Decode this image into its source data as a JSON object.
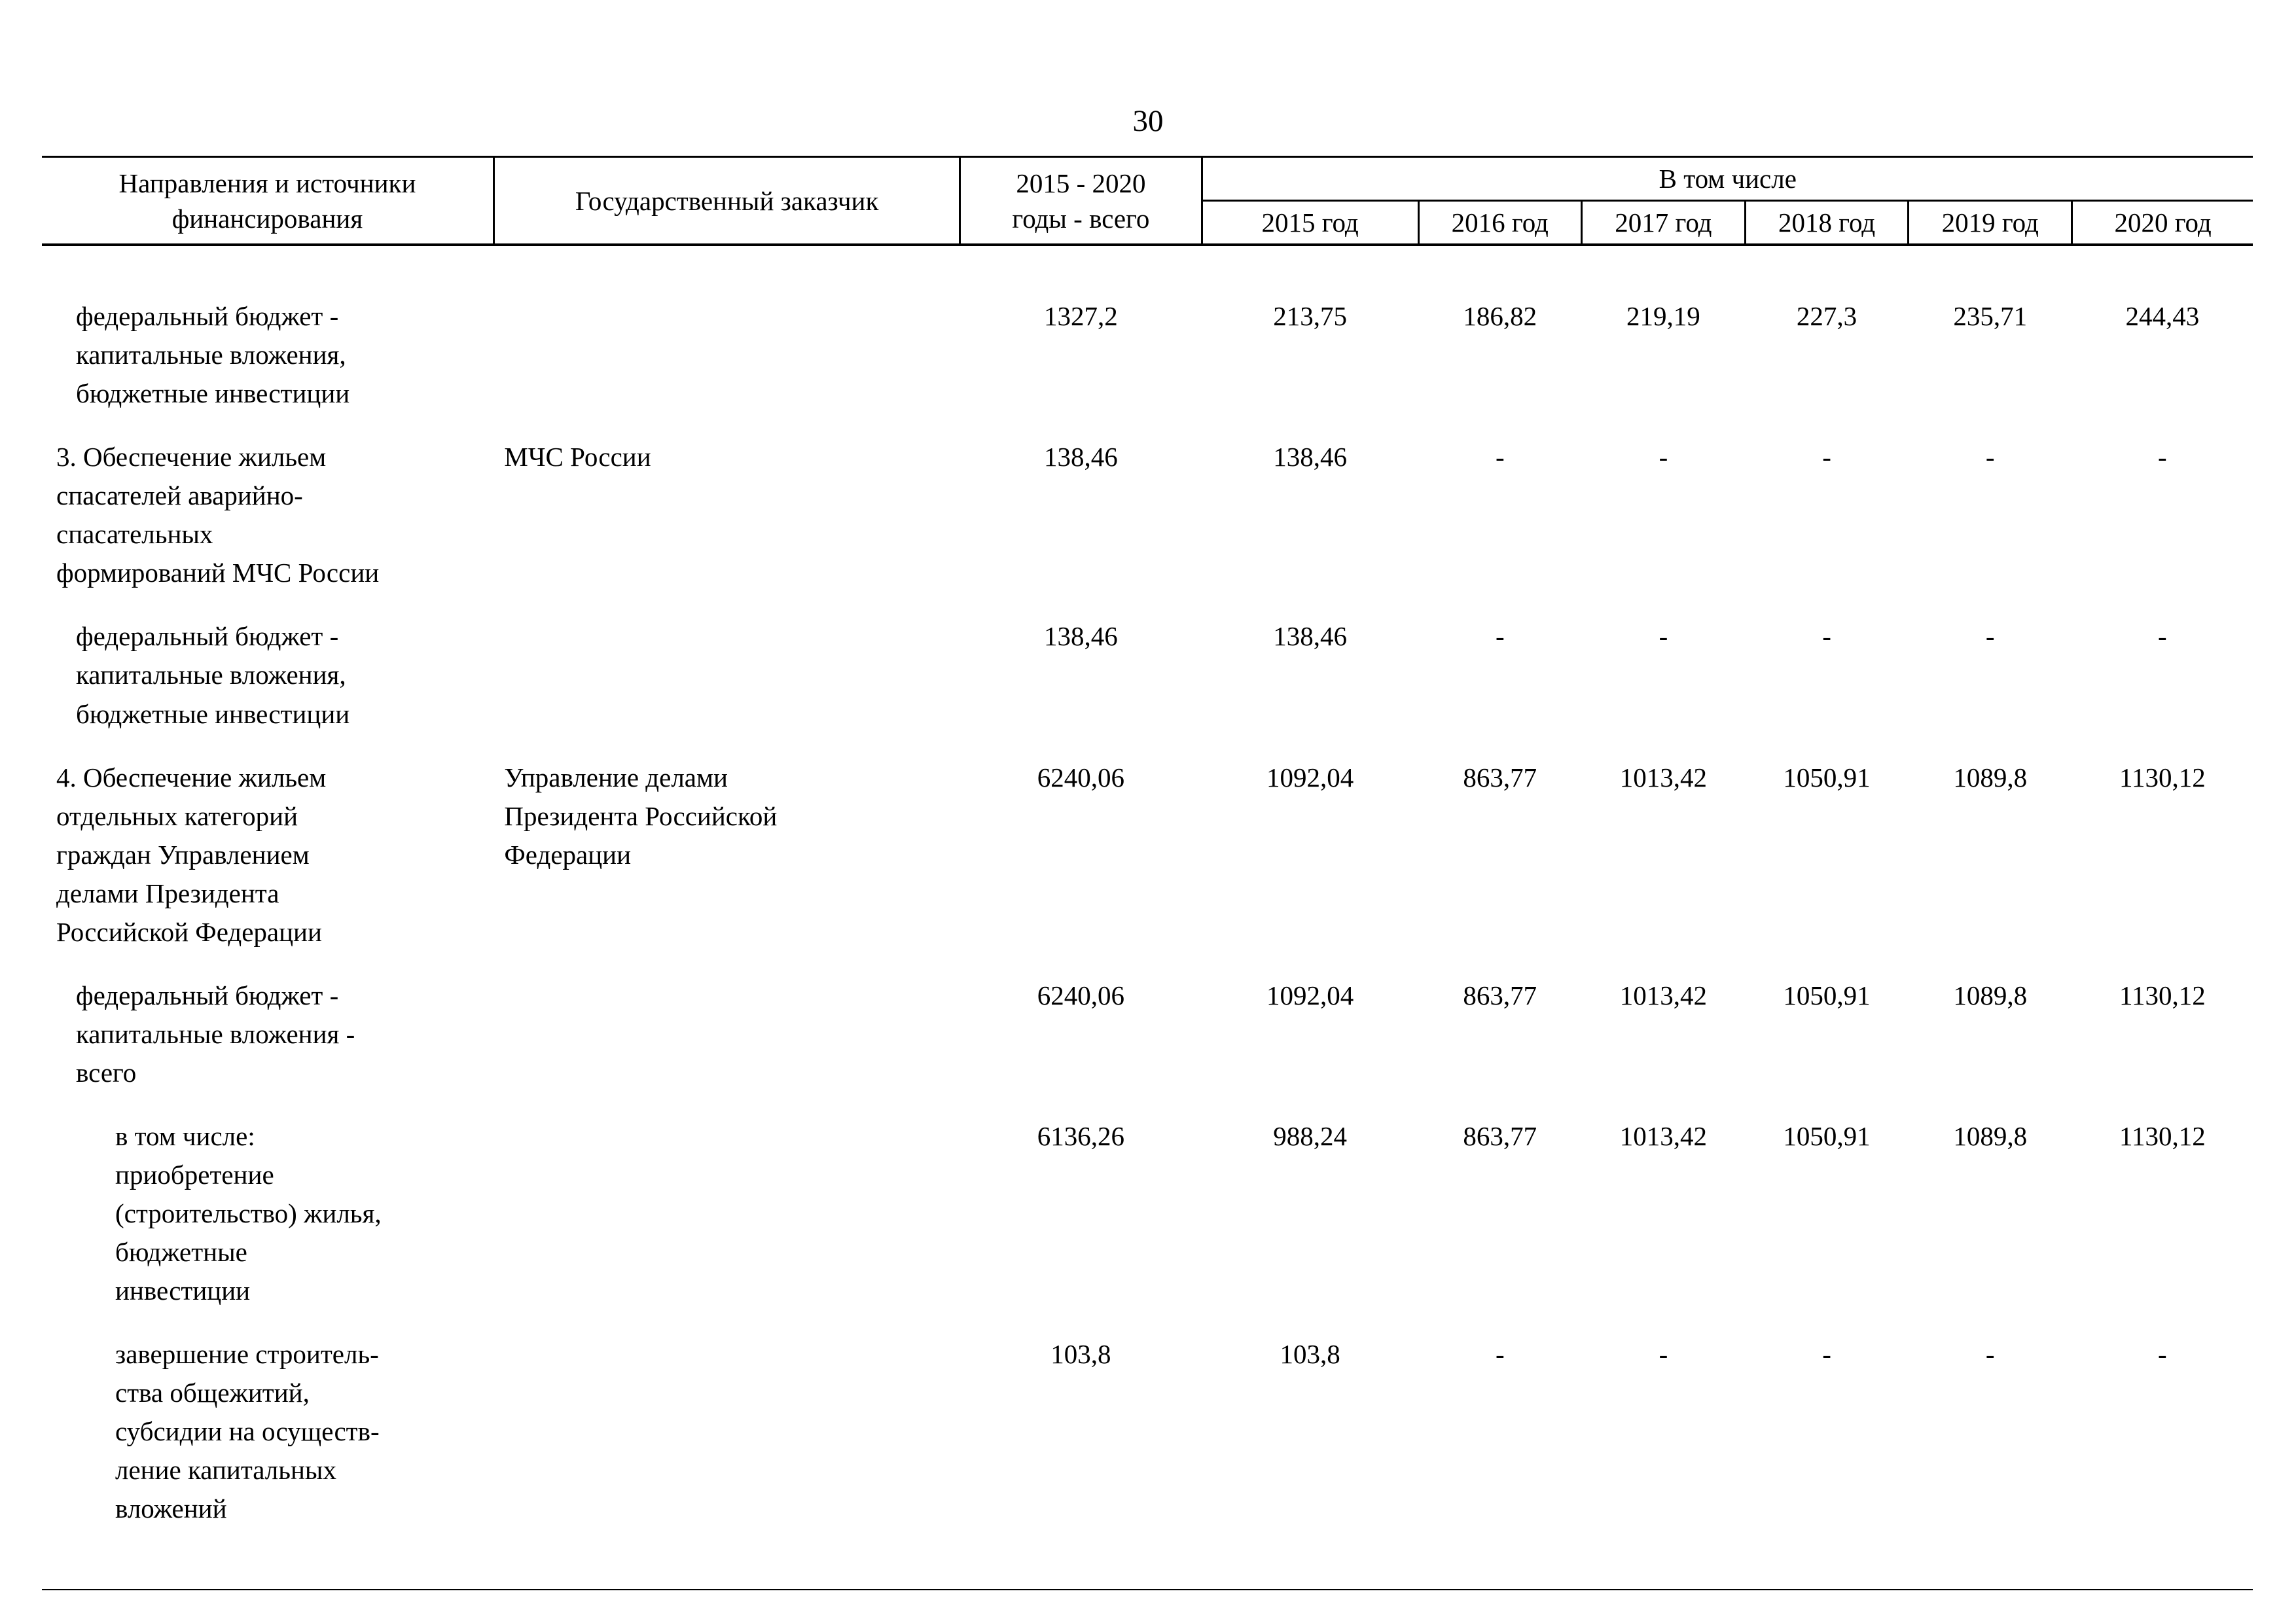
{
  "page": {
    "number": "30"
  },
  "table": {
    "header": {
      "col_directions": "Направления и источники\nфинансирования",
      "col_customer": "Государственный заказчик",
      "col_total": "2015 - 2020\nгоды - всего",
      "col_including": "В том числе",
      "years": [
        "2015 год",
        "2016 год",
        "2017 год",
        "2018 год",
        "2019 год",
        "2020 год"
      ]
    },
    "rows": [
      {
        "indent": 1,
        "direction": "федеральный бюджет -\nкапитальные вложения,\nбюджетные инвестиции",
        "customer": "",
        "total": "1327,2",
        "values": [
          "213,75",
          "186,82",
          "219,19",
          "227,3",
          "235,71",
          "244,43"
        ]
      },
      {
        "indent": 0,
        "direction": "3. Обеспечение жильем\nспасателей аварийно-\nспасательных\nформирований МЧС России",
        "customer": "МЧС России",
        "total": "138,46",
        "values": [
          "138,46",
          "-",
          "-",
          "-",
          "-",
          "-"
        ]
      },
      {
        "indent": 1,
        "direction": "федеральный бюджет -\nкапитальные вложения,\nбюджетные инвестиции",
        "customer": "",
        "total": "138,46",
        "values": [
          "138,46",
          "-",
          "-",
          "-",
          "-",
          "-"
        ]
      },
      {
        "indent": 0,
        "direction": "4. Обеспечение жильем\nотдельных категорий\nграждан Управлением\nделами Президента\nРоссийской Федерации",
        "customer": "Управление делами\nПрезидента Российской\nФедерации",
        "total": "6240,06",
        "values": [
          "1092,04",
          "863,77",
          "1013,42",
          "1050,91",
          "1089,8",
          "1130,12"
        ]
      },
      {
        "indent": 1,
        "direction": "федеральный бюджет -\nкапитальные вложения -\nвсего",
        "customer": "",
        "total": "6240,06",
        "values": [
          "1092,04",
          "863,77",
          "1013,42",
          "1050,91",
          "1089,8",
          "1130,12"
        ]
      },
      {
        "indent": 2,
        "direction": "в том числе:\nприобретение\n(строительство) жилья,\nбюджетные\nинвестиции",
        "customer": "",
        "total": "6136,26",
        "values": [
          "988,24",
          "863,77",
          "1013,42",
          "1050,91",
          "1089,8",
          "1130,12"
        ]
      },
      {
        "indent": 2,
        "direction": "завершение строитель-\nства общежитий,\nсубсидии на осуществ-\nление капитальных\nвложений",
        "customer": "",
        "total": "103,8",
        "values": [
          "103,8",
          "-",
          "-",
          "-",
          "-",
          "-"
        ]
      }
    ]
  }
}
